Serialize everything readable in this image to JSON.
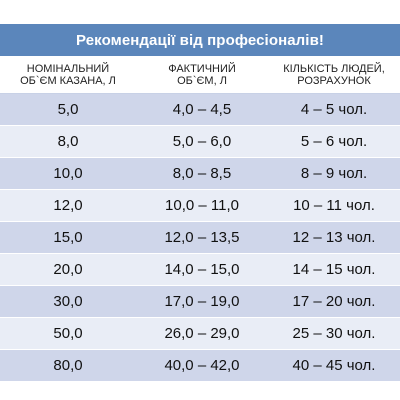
{
  "title": "Рекомендації від професіоналів!",
  "headers": [
    "НОМІНАЛЬНИЙ\nОБ`ЄМ КАЗАНА, Л",
    "ФАКТИЧНИЙ\nОБ`ЄМ, Л",
    "КІЛЬКІСТЬ ЛЮДЕЙ,\nРОЗРАХУНОК"
  ],
  "rows": [
    [
      "5,0",
      "4,0 – 4,5",
      "4 – 5 чол."
    ],
    [
      "8,0",
      "5,0 – 6,0",
      "5 – 6 чол."
    ],
    [
      "10,0",
      "8,0 – 8,5",
      "8 – 9 чол."
    ],
    [
      "12,0",
      "10,0 – 11,0",
      "10 – 11 чол."
    ],
    [
      "15,0",
      "12,0 – 13,5",
      "12 – 13 чол."
    ],
    [
      "20,0",
      "14,0 – 15,0",
      "14 – 15 чол."
    ],
    [
      "30,0",
      "17,0 – 19,0",
      "17 – 20 чол."
    ],
    [
      "50,0",
      "26,0 – 29,0",
      "25 – 30 чол."
    ],
    [
      "80,0",
      "40,0 – 42,0",
      "40 – 45 чол."
    ]
  ],
  "colors": {
    "title_bg": "#5b86bb",
    "row_dark": "#cfd6ea",
    "row_light": "#e9edf6"
  }
}
